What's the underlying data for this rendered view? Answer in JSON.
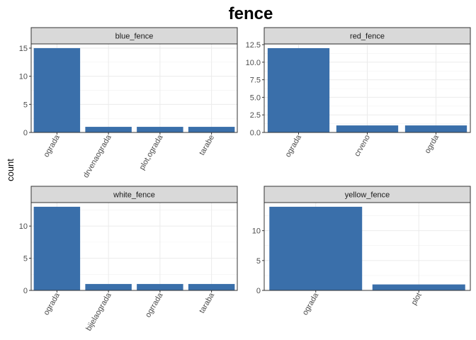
{
  "chart_data": {
    "title": "fence",
    "type": "bar",
    "ylabel": "count",
    "xlabel": "",
    "bar_color": "#3A6FAA",
    "strip_color": "#D9D9D9",
    "panels": [
      {
        "name": "blue_fence",
        "categories": [
          "ograda",
          "drvenaograda",
          "plot,ograda",
          "tarabe"
        ],
        "values": [
          15,
          1,
          1,
          1
        ],
        "ylim": [
          0,
          15.75
        ],
        "yticks": [
          0,
          5,
          10,
          15
        ],
        "ytick_labels": [
          "0",
          "5",
          "10",
          "15"
        ]
      },
      {
        "name": "red_fence",
        "categories": [
          "ograda",
          "crveno",
          "ogrda"
        ],
        "values": [
          12,
          1,
          1
        ],
        "ylim": [
          0,
          12.6
        ],
        "yticks": [
          0,
          2.5,
          5,
          7.5,
          10,
          12.5
        ],
        "ytick_labels": [
          "0.0",
          "2.5",
          "5.0",
          "7.5",
          "10.0",
          "12.5"
        ]
      },
      {
        "name": "white_fence",
        "categories": [
          "ograda",
          "bijelaograda",
          "ogrrada",
          "taraba"
        ],
        "values": [
          13,
          1,
          1,
          1
        ],
        "ylim": [
          0,
          13.65
        ],
        "yticks": [
          0,
          5,
          10
        ],
        "ytick_labels": [
          "0",
          "5",
          "10"
        ]
      },
      {
        "name": "yellow_fence",
        "categories": [
          "ograda",
          "plot"
        ],
        "values": [
          14,
          1
        ],
        "ylim": [
          0,
          14.7
        ],
        "yticks": [
          0,
          5,
          10
        ],
        "ytick_labels": [
          "0",
          "5",
          "10"
        ]
      }
    ]
  }
}
